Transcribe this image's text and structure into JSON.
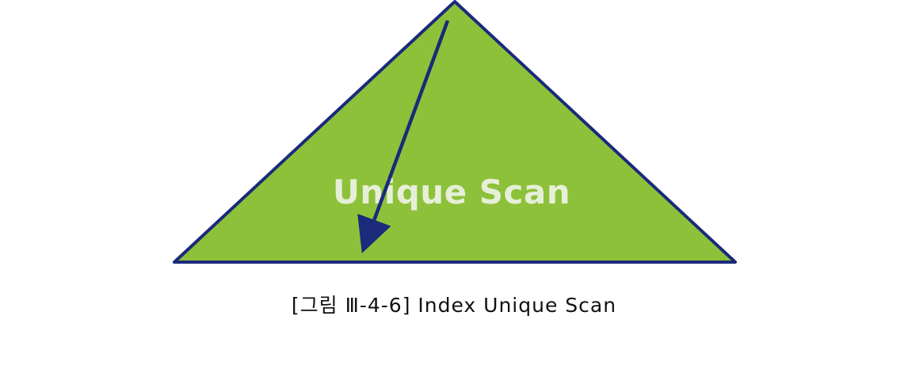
{
  "diagram": {
    "shape_label": "Unique Scan",
    "fill_color": "#8DC13A",
    "outline_color": "#1B2A7A",
    "arrow_color": "#1B2A7A",
    "label_color": "#E6EFD8"
  },
  "caption": "[그림 Ⅲ-4-6] Index Unique Scan"
}
